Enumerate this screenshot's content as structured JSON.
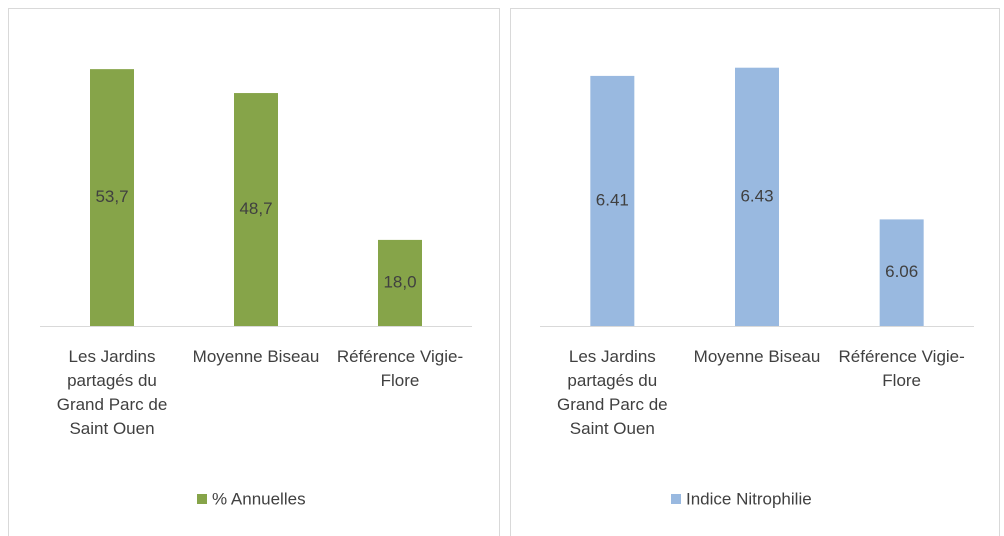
{
  "chart_data": [
    {
      "type": "bar",
      "categories": [
        "Les Jardins partagés du Grand Parc de Saint Ouen",
        "Moyenne Biseau",
        "Référence Vigie-Flore"
      ],
      "series": [
        {
          "name": "% Annuelles",
          "color": "#86a449",
          "values": [
            53.7,
            48.7,
            18.0
          ],
          "value_labels": [
            "53,7",
            "48,7",
            "18,0"
          ]
        }
      ],
      "ylim": [
        0,
        60
      ],
      "legend": "bottom"
    },
    {
      "type": "bar",
      "categories": [
        "Les Jardins partagés du Grand Parc de Saint Ouen",
        "Moyenne Biseau",
        "Référence Vigie-Flore"
      ],
      "series": [
        {
          "name": "Indice Nitrophilie",
          "color": "#99b9e0",
          "values": [
            6.41,
            6.43,
            6.06
          ]
        }
      ],
      "ylim": [
        5.8,
        6.5
      ],
      "legend": "bottom"
    }
  ]
}
